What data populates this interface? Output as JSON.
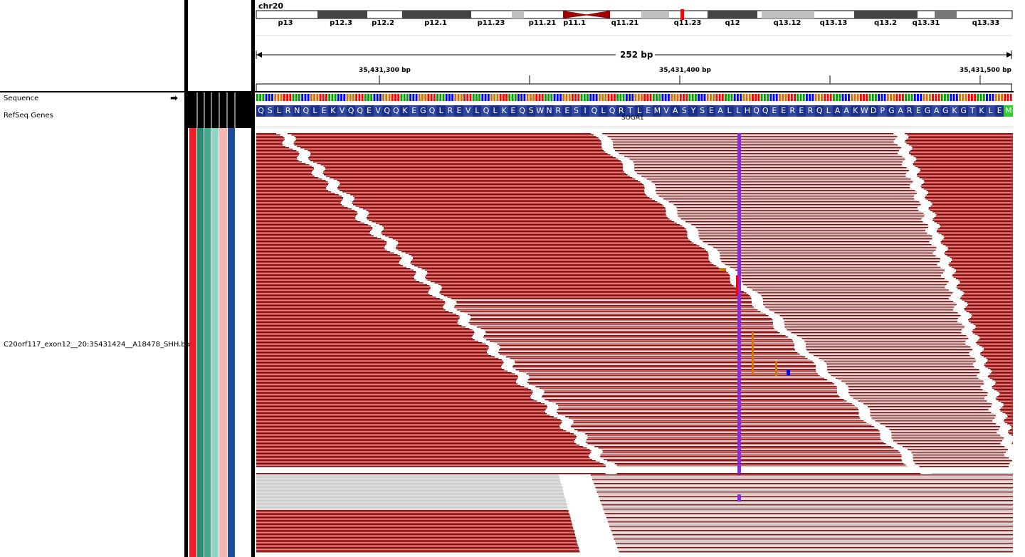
{
  "chromosome": {
    "name": "chr20"
  },
  "bands": [
    {
      "label": "p13"
    },
    {
      "label": "p12.3"
    },
    {
      "label": "p12.2"
    },
    {
      "label": "p12.1"
    },
    {
      "label": "p11.23"
    },
    {
      "label": "p11.21"
    },
    {
      "label": "p11.1"
    },
    {
      "label": "q11.21"
    },
    {
      "label": "q11.23"
    },
    {
      "label": "q12"
    },
    {
      "label": "q13.12"
    },
    {
      "label": "q13.13"
    },
    {
      "label": "q13.2"
    },
    {
      "label": "q13.31"
    },
    {
      "label": "q13.33"
    }
  ],
  "ruler": {
    "span": "252 bp",
    "ticks": [
      {
        "label": "35,431,300 bp"
      },
      {
        "label": "35,431,400 bp"
      },
      {
        "label": "35,431,500 bp"
      }
    ]
  },
  "tracks": {
    "sequence": "Sequence",
    "refseq": "RefSeq Genes",
    "bam": "C20orf117_exon12__20:35431424__A18478_SHH.ba"
  },
  "gene": {
    "name": "SOGA1"
  },
  "amino_acids": "QSLRNQLEKVQQEVQQKEGQLREVLQLKEQSWNRESIQLQRTLEMVASYSEALLHQQEERERQLAAKWDPGAREGAGKGTKLEM",
  "colors": {
    "forward_read": "#990000",
    "reverse_read": "#c8c8c8",
    "mismatch": "#8a2be2",
    "insertion": "#d07800",
    "codon": "#1c2f8a",
    "start_codon": "#33cc33"
  },
  "attribute_colors": [
    "#e8202a",
    "#2a8c6c",
    "#3fa98a",
    "#8fd3c3",
    "#f4b7b4",
    "#1d4e9a",
    "#ffffff"
  ]
}
